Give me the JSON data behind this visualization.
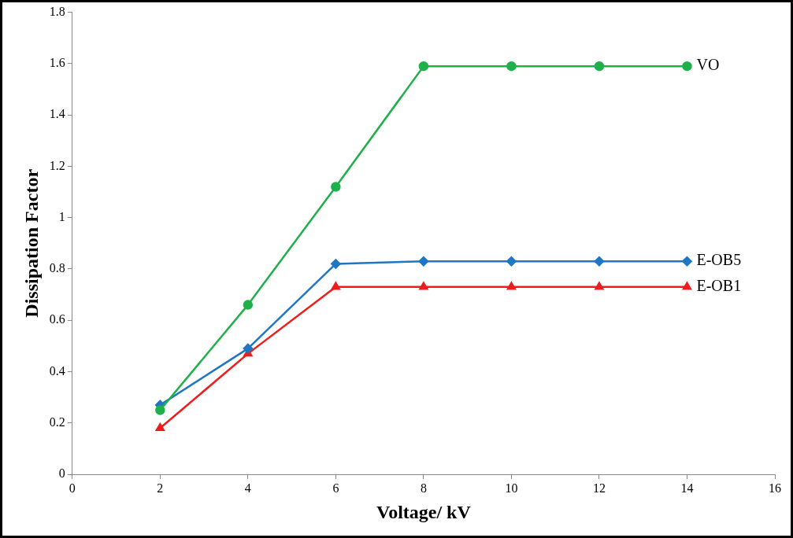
{
  "chart_data": {
    "type": "line",
    "xlabel": "Voltage/ kV",
    "ylabel": "Dissipation Factor",
    "x": [
      2,
      4,
      6,
      8,
      10,
      12,
      14
    ],
    "xlim": [
      0,
      16
    ],
    "xticks": [
      0,
      2,
      4,
      6,
      8,
      10,
      12,
      14,
      16
    ],
    "ylim": [
      0,
      1.8
    ],
    "yticks": [
      0,
      0.2,
      0.4,
      0.6,
      0.8,
      1,
      1.2,
      1.4,
      1.6,
      1.8
    ],
    "grid": false,
    "legend": false,
    "line_style": "solid",
    "series": [
      {
        "name": "VO",
        "color": "#1eb04b",
        "marker": "circle",
        "values": [
          0.25,
          0.66,
          1.12,
          1.59,
          1.59,
          1.59,
          1.59
        ]
      },
      {
        "name": "E-OB5",
        "color": "#1f77c4",
        "marker": "diamond",
        "values": [
          0.27,
          0.49,
          0.82,
          0.83,
          0.83,
          0.83,
          0.83
        ]
      },
      {
        "name": "E-OB1",
        "color": "#ee1c1c",
        "marker": "triangle",
        "values": [
          0.18,
          0.47,
          0.73,
          0.73,
          0.73,
          0.73,
          0.73
        ]
      }
    ]
  }
}
